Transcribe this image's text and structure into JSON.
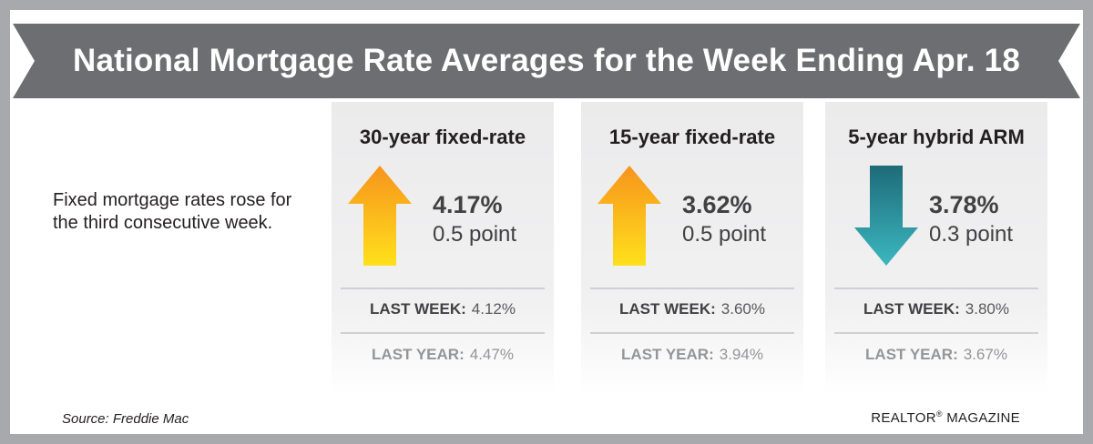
{
  "header": {
    "title": "National Mortgage Rate Averages for the Week Ending Apr. 18"
  },
  "intro": "Fixed mortgage rates rose for the third consecutive week.",
  "cards": [
    {
      "title": "30-year fixed-rate",
      "direction": "up",
      "arrow_icon": "arrow-up-icon",
      "rate": "4.17%",
      "change": "0.5 point",
      "last_week_label": "LAST WEEK:",
      "last_week_value": "4.12%",
      "last_year_label": "LAST YEAR:",
      "last_year_value": "4.47%"
    },
    {
      "title": "15-year fixed-rate",
      "direction": "up",
      "arrow_icon": "arrow-up-icon",
      "rate": "3.62%",
      "change": "0.5 point",
      "last_week_label": "LAST WEEK:",
      "last_week_value": "3.60%",
      "last_year_label": "LAST YEAR:",
      "last_year_value": "3.94%"
    },
    {
      "title": "5-year hybrid ARM",
      "direction": "down",
      "arrow_icon": "arrow-down-icon",
      "rate": "3.78%",
      "change": "0.3 point",
      "last_week_label": "LAST WEEK:",
      "last_week_value": "3.80%",
      "last_year_label": "LAST YEAR:",
      "last_year_value": "3.67%"
    }
  ],
  "footer": {
    "source": "Source: Freddie Mac",
    "brand": "REALTOR",
    "brand_mark": "®",
    "brand_suffix": " MAGAZINE"
  },
  "colors": {
    "background_border": "#a7a9ac",
    "banner": "#6d6e71",
    "arrow_up_top": "#f7941d",
    "arrow_up_bottom": "#ffe01b",
    "arrow_down_top": "#1d6b78",
    "arrow_down_bottom": "#3cb7c0"
  }
}
